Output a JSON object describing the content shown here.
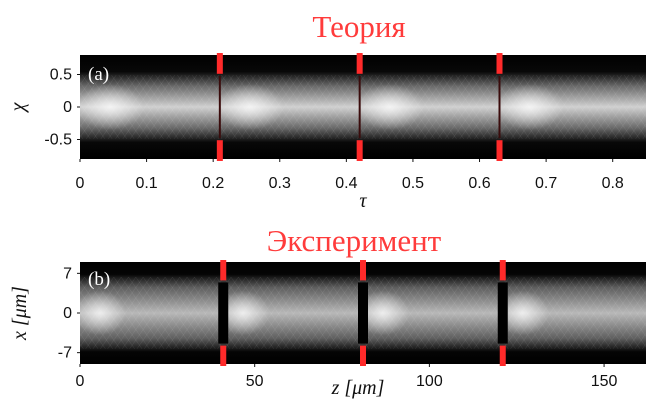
{
  "figure": {
    "top_title": "Теория",
    "bottom_title": "Эксперимент"
  },
  "chart_data": [
    {
      "type": "heatmap",
      "panel_label": "(a)",
      "xlabel": "τ",
      "ylabel": "χ",
      "xlim": [
        0,
        0.85
      ],
      "ylim": [
        -0.8,
        0.8
      ],
      "xticks": [
        0,
        0.1,
        0.2,
        0.3,
        0.4,
        0.5,
        0.6,
        0.7,
        0.8
      ],
      "xtick_labels": [
        "0",
        "0.1",
        "0.2",
        "0.3",
        "0.4",
        "0.5",
        "0.6",
        "0.7",
        "0.8"
      ],
      "yticks": [
        0.5,
        0,
        -0.5
      ],
      "ytick_labels": [
        "0.5",
        "0",
        "-0.5"
      ],
      "segment_boundaries": [
        0.21,
        0.42,
        0.63
      ],
      "marker_color": "#ff2a2a",
      "colormap": "grayscale"
    },
    {
      "type": "heatmap",
      "panel_label": "(b)",
      "xlabel": "z [μm]",
      "ylabel": "x [μm]",
      "xlim": [
        0,
        162
      ],
      "ylim": [
        -9,
        9
      ],
      "xticks": [
        0,
        50,
        100,
        150
      ],
      "xtick_labels": [
        "0",
        "50",
        "100",
        "150"
      ],
      "yticks": [
        7,
        0,
        -7
      ],
      "ytick_labels": [
        "7",
        "0",
        "-7"
      ],
      "segment_boundaries": [
        41,
        81,
        121
      ],
      "marker_color": "#ff2a2a",
      "colormap": "grayscale"
    }
  ]
}
